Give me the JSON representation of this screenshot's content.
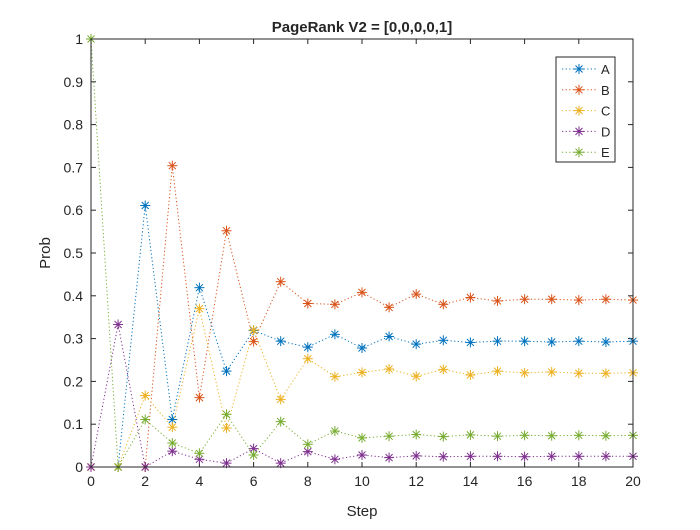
{
  "chart_data": {
    "type": "line",
    "title": "PageRank V2 = [0,0,0,0,1]",
    "xlabel": "Step",
    "ylabel": "Prob",
    "xlim": [
      0,
      20
    ],
    "ylim": [
      0,
      1
    ],
    "xticks": [
      0,
      2,
      4,
      6,
      8,
      10,
      12,
      14,
      16,
      18,
      20
    ],
    "yticks": [
      0,
      0.1,
      0.2,
      0.3,
      0.4,
      0.5,
      0.6,
      0.7,
      0.8,
      0.9,
      1
    ],
    "xtick_labels": [
      "0",
      "2",
      "4",
      "6",
      "8",
      "10",
      "12",
      "14",
      "16",
      "18",
      "20"
    ],
    "ytick_labels": [
      "0",
      "0.1",
      "0.2",
      "0.3",
      "0.4",
      "0.5",
      "0.6",
      "0.7",
      "0.8",
      "0.9",
      "1"
    ],
    "grid": false,
    "legend_position": "top-right",
    "marker": "asterisk",
    "line_style": "dotted",
    "x": [
      0,
      1,
      2,
      3,
      4,
      5,
      6,
      7,
      8,
      9,
      10,
      11,
      12,
      13,
      14,
      15,
      16,
      17,
      18,
      19,
      20
    ],
    "series": [
      {
        "name": "A",
        "color": "#0072BD",
        "values": [
          0,
          0,
          0.611,
          0.111,
          0.419,
          0.224,
          0.319,
          0.294,
          0.28,
          0.31,
          0.278,
          0.305,
          0.287,
          0.296,
          0.291,
          0.294,
          0.294,
          0.292,
          0.294,
          0.292,
          0.294
        ]
      },
      {
        "name": "B",
        "color": "#D95319",
        "values": [
          0,
          0,
          0,
          0.704,
          0.162,
          0.552,
          0.293,
          0.433,
          0.382,
          0.38,
          0.408,
          0.373,
          0.404,
          0.38,
          0.396,
          0.388,
          0.392,
          0.392,
          0.39,
          0.392,
          0.39
        ]
      },
      {
        "name": "C",
        "color": "#EDB120",
        "values": [
          0,
          0,
          0.167,
          0.093,
          0.37,
          0.091,
          0.32,
          0.158,
          0.253,
          0.211,
          0.221,
          0.229,
          0.212,
          0.228,
          0.215,
          0.224,
          0.22,
          0.222,
          0.219,
          0.219,
          0.22
        ]
      },
      {
        "name": "D",
        "color": "#7E2F8E",
        "values": [
          0,
          0.333,
          0,
          0.037,
          0.018,
          0.009,
          0.043,
          0.009,
          0.036,
          0.018,
          0.028,
          0.022,
          0.026,
          0.024,
          0.025,
          0.025,
          0.024,
          0.025,
          0.025,
          0.025,
          0.025
        ]
      },
      {
        "name": "E",
        "color": "#77AC30",
        "values": [
          1,
          0,
          0.111,
          0.056,
          0.032,
          0.123,
          0.028,
          0.106,
          0.053,
          0.084,
          0.068,
          0.072,
          0.076,
          0.071,
          0.075,
          0.072,
          0.074,
          0.073,
          0.074,
          0.073,
          0.074
        ]
      }
    ]
  }
}
